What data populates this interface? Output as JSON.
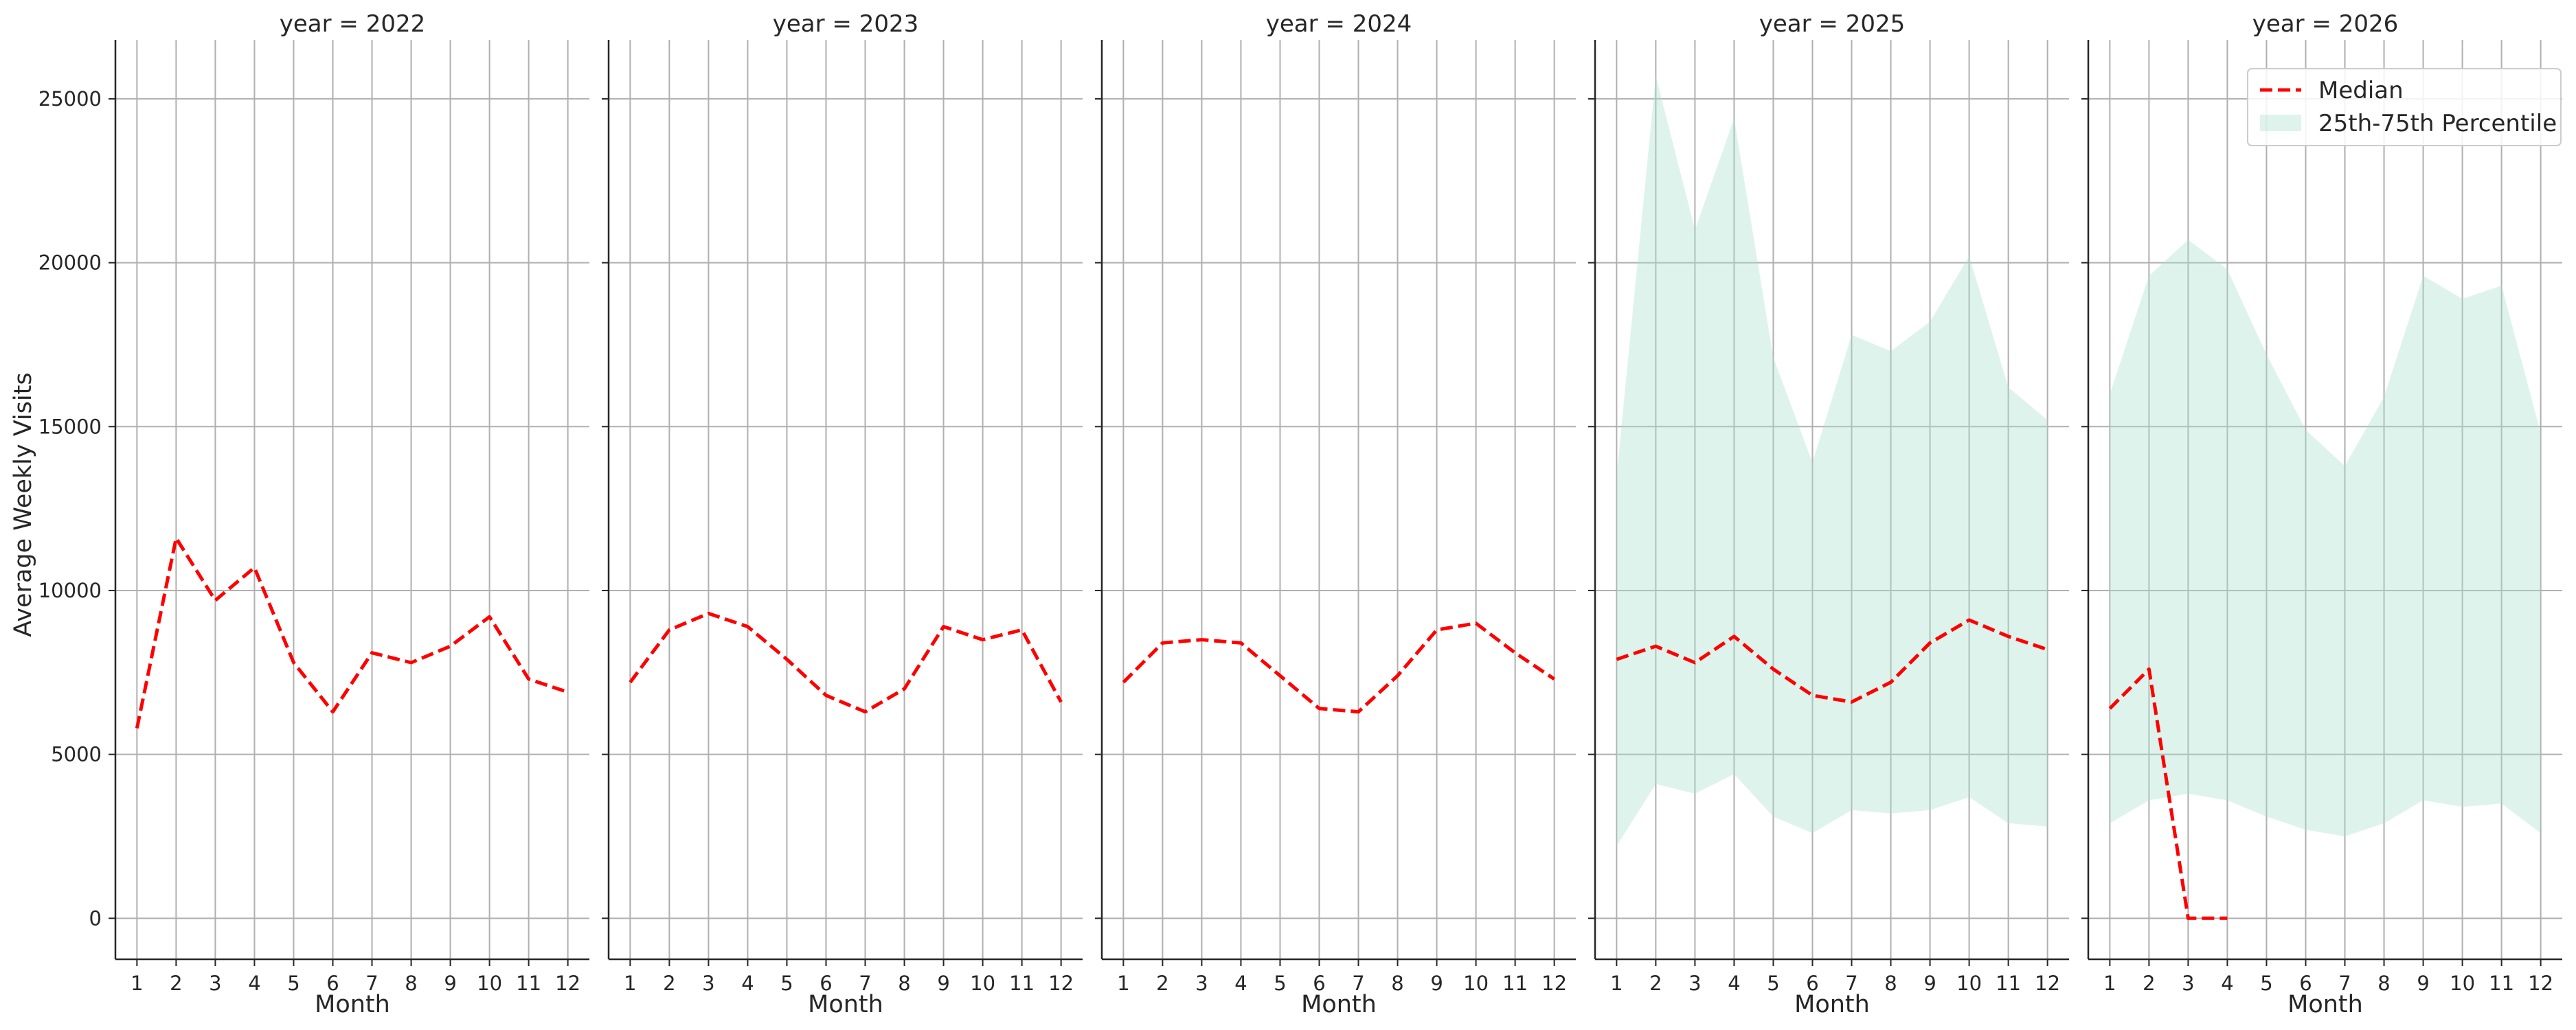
{
  "chart_data": {
    "type": "line",
    "ylabel": "Average Weekly Visits",
    "xlabel": "Month",
    "x_ticks": [
      1,
      2,
      3,
      4,
      5,
      6,
      7,
      8,
      9,
      10,
      11,
      12
    ],
    "y_ticks": [
      0,
      5000,
      10000,
      15000,
      20000,
      25000
    ],
    "y_tick_labels": [
      "0",
      "5000",
      "10000",
      "15000",
      "20000",
      "25000"
    ],
    "ylim": [
      -1250,
      26800
    ],
    "xlim": [
      0.45,
      12.55
    ],
    "grid": true,
    "colors": {
      "median": "#ff0000",
      "band": "#a8dfcc",
      "grid": "#b0b0b0",
      "axis": "#262626"
    },
    "legend": {
      "placement": "top-right",
      "entries": [
        "Median",
        "25th-75th Percentile"
      ]
    },
    "panels": [
      {
        "title": "year = 2022",
        "median": {
          "x": [
            1,
            2,
            3,
            4,
            5,
            6,
            7,
            8,
            9,
            10,
            11,
            12
          ],
          "y": [
            5800,
            11600,
            9700,
            10700,
            7800,
            6300,
            8100,
            7800,
            8300,
            9200,
            7300,
            6900
          ]
        },
        "band": null
      },
      {
        "title": "year = 2023",
        "median": {
          "x": [
            1,
            2,
            3,
            4,
            5,
            6,
            7,
            8,
            9,
            10,
            11,
            12
          ],
          "y": [
            7200,
            8800,
            9300,
            8900,
            7900,
            6800,
            6300,
            7000,
            8900,
            8500,
            8800,
            6600
          ]
        },
        "band": null
      },
      {
        "title": "year = 2024",
        "median": {
          "x": [
            1,
            2,
            3,
            4,
            5,
            6,
            7,
            8,
            9,
            10,
            11,
            12
          ],
          "y": [
            7200,
            8400,
            8500,
            8400,
            7400,
            6400,
            6300,
            7400,
            8800,
            9000,
            8100,
            7300
          ]
        },
        "band": null
      },
      {
        "title": "year = 2025",
        "median": {
          "x": [
            1,
            2,
            3,
            4,
            5,
            6,
            7,
            8,
            9,
            10,
            11,
            12
          ],
          "y": [
            7900,
            8300,
            7800,
            8600,
            7600,
            6800,
            6600,
            7200,
            8400,
            9100,
            8600,
            8200
          ]
        },
        "band": {
          "x": [
            1,
            2,
            3,
            4,
            5,
            6,
            7,
            8,
            9,
            10,
            11,
            12
          ],
          "low": [
            2200,
            4100,
            3800,
            4400,
            3100,
            2600,
            3300,
            3200,
            3300,
            3700,
            2900,
            2800
          ],
          "high": [
            13500,
            25700,
            21000,
            24400,
            17100,
            13900,
            17800,
            17300,
            18200,
            20200,
            16200,
            15200
          ]
        }
      },
      {
        "title": "year = 2026",
        "median": {
          "x": [
            1,
            2,
            3,
            4
          ],
          "y": [
            6400,
            7600,
            0,
            0
          ]
        },
        "band": {
          "x": [
            1,
            2,
            3,
            4,
            5,
            6,
            7,
            8,
            9,
            10,
            11,
            12
          ],
          "low": [
            2900,
            3600,
            3800,
            3600,
            3100,
            2700,
            2500,
            2900,
            3600,
            3400,
            3500,
            2600
          ],
          "high": [
            16000,
            19600,
            20700,
            19800,
            17200,
            14900,
            13800,
            15900,
            19600,
            18900,
            19300,
            14800
          ]
        }
      }
    ]
  }
}
